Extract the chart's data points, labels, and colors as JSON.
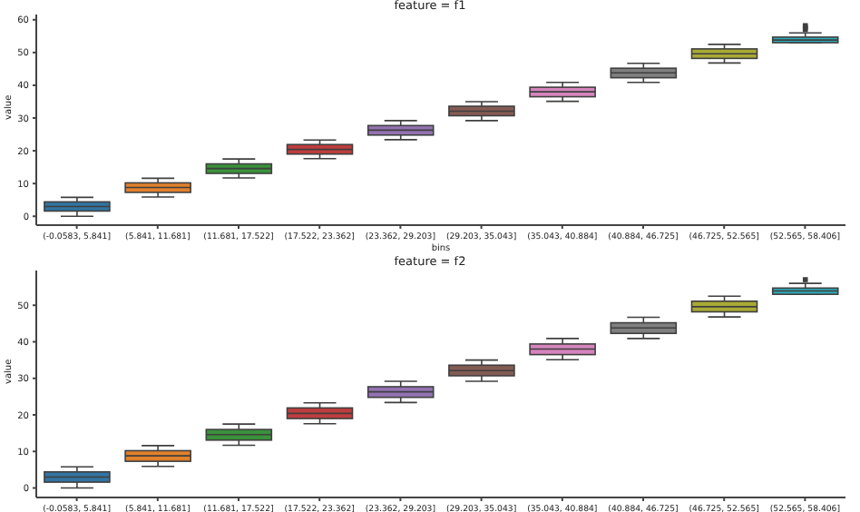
{
  "chart_data": [
    {
      "type": "box",
      "title": "feature = f1",
      "xlabel": "bins",
      "ylabel": "value",
      "categories": [
        "(-0.0583, 5.841]",
        "(5.841, 11.681]",
        "(11.681, 17.522]",
        "(17.522, 23.362]",
        "(23.362, 29.203]",
        "(29.203, 35.043]",
        "(35.043, 40.884]",
        "(40.884, 46.725]",
        "(46.725, 52.565]",
        "(52.565, 58.406]"
      ],
      "boxes": [
        {
          "low": 0,
          "q1": 1.6,
          "median": 3.0,
          "q3": 4.4,
          "high": 5.8
        },
        {
          "low": 5.9,
          "q1": 7.3,
          "median": 8.8,
          "q3": 10.2,
          "high": 11.6
        },
        {
          "low": 11.7,
          "q1": 13.1,
          "median": 14.6,
          "q3": 16.0,
          "high": 17.5
        },
        {
          "low": 17.6,
          "q1": 19.0,
          "median": 20.4,
          "q3": 21.9,
          "high": 23.3
        },
        {
          "low": 23.4,
          "q1": 24.8,
          "median": 26.3,
          "q3": 27.7,
          "high": 29.2
        },
        {
          "low": 29.2,
          "q1": 30.7,
          "median": 32.1,
          "q3": 33.6,
          "high": 35.0
        },
        {
          "low": 35.1,
          "q1": 36.5,
          "median": 38.0,
          "q3": 39.4,
          "high": 40.9
        },
        {
          "low": 40.9,
          "q1": 42.3,
          "median": 43.8,
          "q3": 45.2,
          "high": 46.7
        },
        {
          "low": 46.8,
          "q1": 48.2,
          "median": 49.6,
          "q3": 51.1,
          "high": 52.5
        },
        {
          "low": 53.0,
          "q1": 53.0,
          "median": 53.8,
          "q3": 54.7,
          "high": 56.0,
          "outliers": [
            57.0,
            57.6,
            58.2
          ]
        }
      ],
      "colors": [
        "#3274a1",
        "#e1812c",
        "#3a923a",
        "#c03d3e",
        "#9372b2",
        "#845b53",
        "#d684bd",
        "#7f7f7f",
        "#a9aa35",
        "#2eabb8"
      ],
      "ylim": [
        -2.7,
        61.6
      ],
      "yticks": [
        0,
        10,
        20,
        30,
        40,
        50,
        60
      ],
      "grid": false
    },
    {
      "type": "box",
      "title": "feature = f2",
      "ylabel": "value",
      "categories": [
        "(-0.0583, 5.841]",
        "(5.841, 11.681]",
        "(11.681, 17.522]",
        "(17.522, 23.362]",
        "(23.362, 29.203]",
        "(29.203, 35.043]",
        "(35.043, 40.884]",
        "(40.884, 46.725]",
        "(46.725, 52.565]",
        "(52.565, 58.406]"
      ],
      "boxes": [
        {
          "low": 0,
          "q1": 1.6,
          "median": 3.0,
          "q3": 4.4,
          "high": 5.8
        },
        {
          "low": 5.9,
          "q1": 7.3,
          "median": 8.8,
          "q3": 10.2,
          "high": 11.6
        },
        {
          "low": 11.7,
          "q1": 13.1,
          "median": 14.6,
          "q3": 16.0,
          "high": 17.5
        },
        {
          "low": 17.6,
          "q1": 19.0,
          "median": 20.4,
          "q3": 21.9,
          "high": 23.3
        },
        {
          "low": 23.4,
          "q1": 24.8,
          "median": 26.3,
          "q3": 27.7,
          "high": 29.2
        },
        {
          "low": 29.2,
          "q1": 30.7,
          "median": 32.1,
          "q3": 33.6,
          "high": 35.0
        },
        {
          "low": 35.1,
          "q1": 36.5,
          "median": 38.0,
          "q3": 39.4,
          "high": 40.9
        },
        {
          "low": 40.9,
          "q1": 42.3,
          "median": 43.8,
          "q3": 45.2,
          "high": 46.7
        },
        {
          "low": 46.8,
          "q1": 48.2,
          "median": 49.6,
          "q3": 51.1,
          "high": 52.5
        },
        {
          "low": 53.0,
          "q1": 53.0,
          "median": 53.9,
          "q3": 54.7,
          "high": 56.0,
          "outliers": [
            57.0
          ]
        }
      ],
      "colors": [
        "#3274a1",
        "#e1812c",
        "#3a923a",
        "#c03d3e",
        "#9372b2",
        "#845b53",
        "#d684bd",
        "#7f7f7f",
        "#a9aa35",
        "#2eabb8"
      ],
      "ylim": [
        -2.6,
        59.5
      ],
      "yticks": [
        0,
        10,
        20,
        30,
        40,
        50
      ],
      "grid": false
    }
  ]
}
